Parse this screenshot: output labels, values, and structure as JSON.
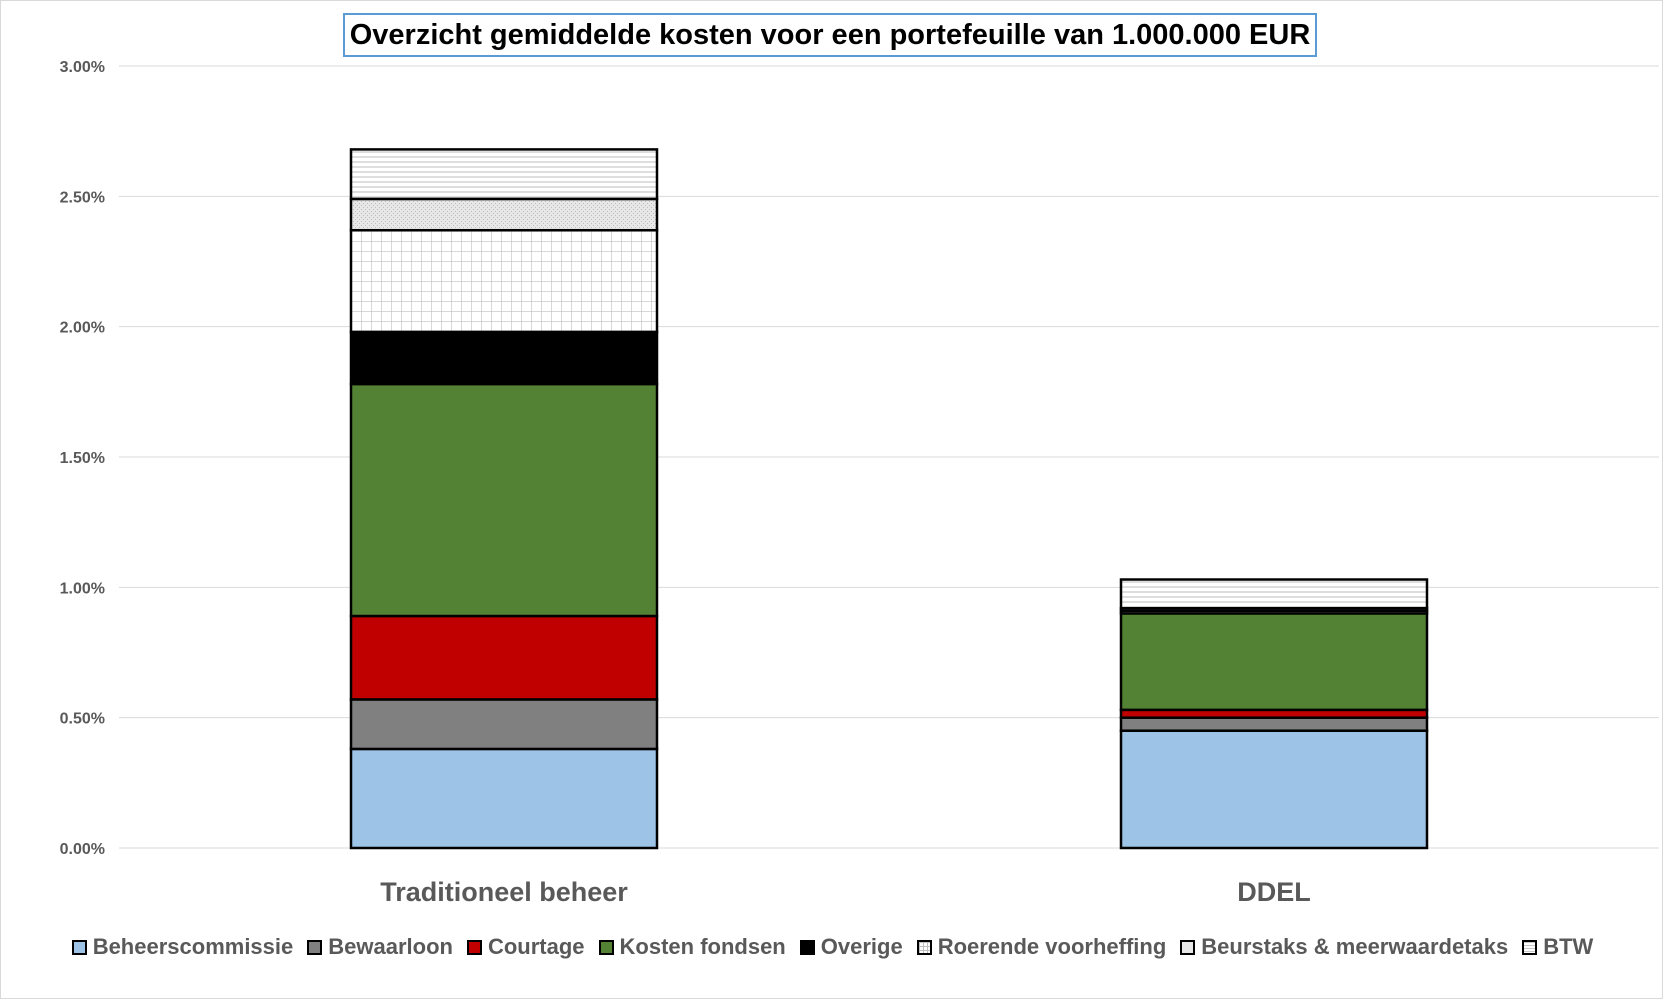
{
  "chart_data": {
    "type": "bar",
    "stacked": true,
    "title": "Overzicht gemiddelde kosten voor een portefeuille van 1.000.000 EUR",
    "categories": [
      "Traditioneel beheer",
      "DDEL"
    ],
    "ylim": [
      0,
      0.03
    ],
    "yticks": [
      "0.00%",
      "0.50%",
      "1.00%",
      "1.50%",
      "2.00%",
      "2.50%",
      "3.00%"
    ],
    "grid": true,
    "legend_position": "bottom",
    "series": [
      {
        "name": "Beheerscommissie",
        "values": [
          0.0038,
          0.0045
        ],
        "color": "#9dc3e6",
        "pattern": "solid"
      },
      {
        "name": "Bewaarloon",
        "values": [
          0.0019,
          0.0005
        ],
        "color": "#808080",
        "pattern": "solid"
      },
      {
        "name": "Courtage",
        "values": [
          0.0032,
          0.0003
        ],
        "color": "#c00000",
        "pattern": "solid"
      },
      {
        "name": "Kosten fondsen",
        "values": [
          0.0089,
          0.0037
        ],
        "color": "#548235",
        "pattern": "solid"
      },
      {
        "name": "Overige",
        "values": [
          0.002,
          0.0
        ],
        "color": "#000000",
        "pattern": "solid"
      },
      {
        "name": "Roerende voorheffing",
        "values": [
          0.0039,
          0.0001
        ],
        "color": "#ffffff",
        "pattern": "grid"
      },
      {
        "name": "Beurstaks & meerwaardetaks",
        "values": [
          0.0012,
          0.0001
        ],
        "color": "#d9d9d9",
        "pattern": "dotted"
      },
      {
        "name": "BTW",
        "values": [
          0.0019,
          0.0011
        ],
        "color": "#ffffff",
        "pattern": "hlines"
      }
    ]
  }
}
